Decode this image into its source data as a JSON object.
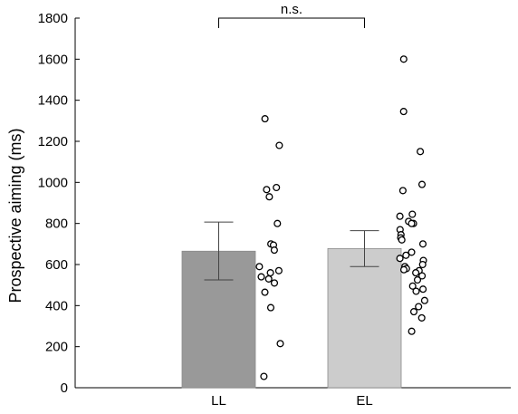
{
  "chart_data": {
    "type": "bar",
    "ylabel": "Prospective aiming (ms)",
    "ylim": [
      0,
      1800
    ],
    "yticks": [
      0,
      200,
      400,
      600,
      800,
      1000,
      1200,
      1400,
      1600,
      1800
    ],
    "grid": false,
    "categories": [
      "LL",
      "EL"
    ],
    "bars": [
      {
        "category": "LL",
        "mean": 665,
        "err_low": 525,
        "err_high": 807,
        "color": "#999999"
      },
      {
        "category": "EL",
        "mean": 678,
        "err_low": 590,
        "err_high": 765,
        "color": "#cccccc"
      }
    ],
    "points": {
      "LL": [
        1310,
        1180,
        975,
        965,
        930,
        800,
        700,
        695,
        670,
        590,
        570,
        560,
        540,
        530,
        510,
        465,
        390,
        215,
        55
      ],
      "EL": [
        1600,
        1345,
        1150,
        990,
        960,
        845,
        835,
        810,
        800,
        800,
        770,
        745,
        730,
        720,
        700,
        660,
        645,
        630,
        620,
        600,
        590,
        580,
        575,
        570,
        560,
        545,
        525,
        495,
        480,
        470,
        425,
        395,
        370,
        340,
        275
      ]
    },
    "annotations": [
      {
        "text": "n.s.",
        "between": [
          "LL",
          "EL"
        ]
      }
    ]
  }
}
